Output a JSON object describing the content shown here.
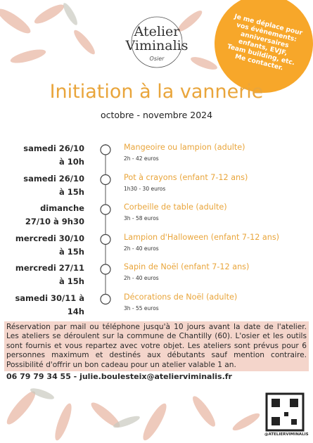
{
  "logo": {
    "name_1": "Atelier",
    "name_2": "Viminalis",
    "tagline": "Osier"
  },
  "badge": {
    "lines": [
      "Je me déplace pour",
      "vos évènements:",
      "anniversaires",
      "enfants, EVJF,",
      "Team building, etc.",
      "Me contacter."
    ]
  },
  "header": {
    "title": "Initiation à la vannerie",
    "subtitle": "octobre - novembre 2024"
  },
  "events": [
    {
      "date": [
        "samedi 26/10",
        "à 10h"
      ],
      "title": "Mangeoire ou lampion (adulte)",
      "details": "2h - 42 euros"
    },
    {
      "date": [
        "samedi 26/10",
        "à 15h"
      ],
      "title": "Pot à crayons (enfant 7-12 ans)",
      "details": "1h30 - 30 euros"
    },
    {
      "date": [
        "dimanche",
        "27/10 à 9h30"
      ],
      "title": "Corbeille de table (adulte)",
      "details": "3h - 58 euros"
    },
    {
      "date": [
        "mercredi 30/10",
        "à 15h"
      ],
      "title": "Lampion d'Halloween (enfant 7-12 ans)",
      "details": "2h - 40 euros"
    },
    {
      "date": [
        "mercredi 27/11",
        "à 15h"
      ],
      "title": "Sapin de Noël (enfant 7-12 ans)",
      "details": "2h - 40 euros"
    },
    {
      "date": [
        "samedi 30/11 à",
        "14h"
      ],
      "title": "Décorations de Noël (adulte)",
      "details": "3h - 55 euros"
    }
  ],
  "info": {
    "text": "Réservation par mail ou téléphone jusqu'à 10 jours avant la date de l'atelier. Les ateliers se déroulent sur la commune de Chantilly (60). L'osier et les outils sont fournis et vous repartez avec votre objet. Les ateliers sont prévus pour 6 personnes maximum et destinés aux débutants sauf mention contraire. Possibilité d'offrir un bon cadeau pour un atelier valable 1 an.",
    "contact": "06 79 79 34 55 - julie.boulesteix@atelierviminalis.fr"
  },
  "qr": {
    "label": "@ATELIERVIMINALIS"
  }
}
